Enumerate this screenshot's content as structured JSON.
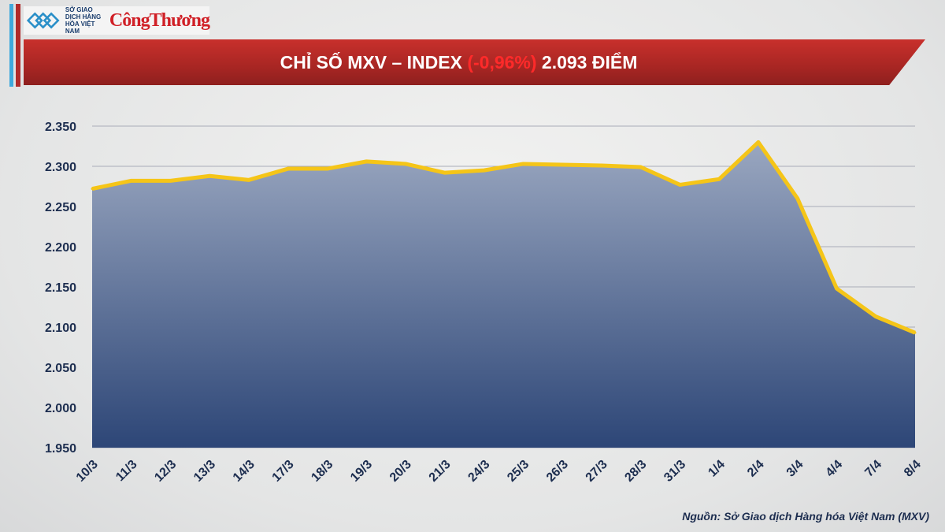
{
  "header": {
    "logo_org": "SỞ GIAO DỊCH HÀNG HÓA VIỆT NAM",
    "logo_brand": "CôngThương",
    "title_prefix": "CHỈ SỐ MXV – INDEX ",
    "title_change": "(-0,96%)",
    "title_suffix": " 2.093 ĐIỂM"
  },
  "source": "Nguồn: Sở Giao dịch Hàng hóa Việt Nam (MXV)",
  "colors": {
    "line": "#f5c518",
    "fill_top": "#9aa7c0",
    "fill_bottom": "#2d4677",
    "title_bg": "#b02a2a",
    "negative": "#ff2a2a"
  },
  "chart_data": {
    "type": "area",
    "title": "CHỈ SỐ MXV – INDEX (-0,96%) 2.093 ĐIỂM",
    "categories": [
      "10/3",
      "11/3",
      "12/3",
      "13/3",
      "14/3",
      "17/3",
      "18/3",
      "19/3",
      "20/3",
      "21/3",
      "24/3",
      "25/3",
      "26/3",
      "27/3",
      "28/3",
      "31/3",
      "1/4",
      "2/4",
      "3/4",
      "4/4",
      "7/4",
      "8/4"
    ],
    "values": [
      2272,
      2282,
      2282,
      2288,
      2283,
      2297,
      2297,
      2306,
      2303,
      2292,
      2295,
      2303,
      2302,
      2301,
      2299,
      2277,
      2284,
      2330,
      2260,
      2148,
      2113,
      2093
    ],
    "ylim": [
      1950,
      2350
    ],
    "yticks": [
      "2.350",
      "2.300",
      "2.250",
      "2.200",
      "2.150",
      "2.100",
      "2.050",
      "2.000",
      "1.950"
    ],
    "grid": true,
    "legend": "none"
  }
}
